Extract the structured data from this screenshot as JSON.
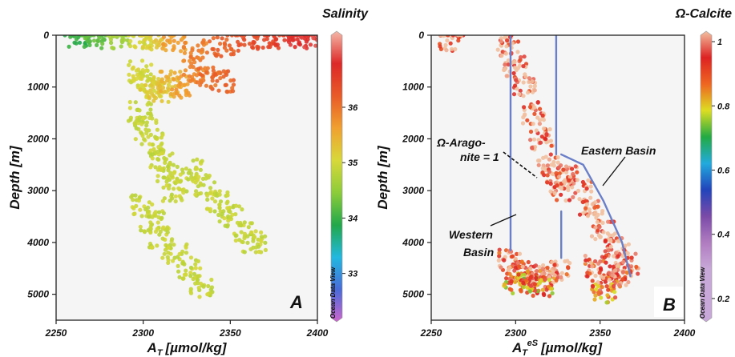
{
  "colors": {
    "salinity_stops": [
      "#cc66cc",
      "#4a6bd8",
      "#22b8e0",
      "#22a84a",
      "#8ccc3a",
      "#d8d83a",
      "#f0a030",
      "#e85a28",
      "#dd2828",
      "#f4b8a8"
    ],
    "calcite_stops": [
      "#c8a8d8",
      "#c8a8d8",
      "#c8a8d8",
      "#b07cc0",
      "#7a4aa8",
      "#2244bb",
      "#22aadd",
      "#22aa44",
      "#dddd22",
      "#ee6622",
      "#dd2222",
      "#f2c0a0"
    ],
    "omega_points": "#f8c29a",
    "basin_line": "#6a7fc8",
    "plot_bg": "#f4f5f4"
  },
  "chart_data": [
    {
      "type": "scatter",
      "panel_label": "A",
      "xlabel": "A",
      "xlabel_sub": "T",
      "xlabel_units": "[µmol/kg]",
      "ylabel": "Depth [m]",
      "xlim": [
        2250,
        2400
      ],
      "ylim": [
        5500,
        0
      ],
      "x_ticks": [
        "2250",
        "2300",
        "2350",
        "2400"
      ],
      "y_ticks": [
        "0",
        "1000",
        "2000",
        "3000",
        "4000",
        "5000"
      ],
      "colorbar": {
        "title": "Salinity",
        "range": [
          32.2,
          37.3
        ],
        "ticks": [
          "33",
          "34",
          "35",
          "36"
        ],
        "watermark": "Ocean Data View"
      },
      "series": [
        {
          "x": [
            2262,
            2272,
            2285,
            2298,
            2305,
            2318,
            2330,
            2345,
            2360,
            2375,
            2390,
            2396
          ],
          "y": [
            60,
            40,
            50,
            80,
            100,
            150,
            300,
            200,
            120,
            80,
            60,
            20
          ],
          "c": [
            34.0,
            34.2,
            34.6,
            35.0,
            35.2,
            35.6,
            35.9,
            36.1,
            36.3,
            36.5,
            36.7,
            36.8
          ]
        },
        {
          "x": [
            2298,
            2300,
            2305,
            2310,
            2315,
            2322,
            2330,
            2338,
            2345
          ],
          "y": [
            700,
            900,
            1000,
            1100,
            900,
            1000,
            700,
            800,
            900
          ],
          "c": [
            35.0,
            35.0,
            35.1,
            35.2,
            35.4,
            35.6,
            35.8,
            36.0,
            36.1
          ]
        },
        {
          "x": [
            2298,
            2302,
            2306,
            2310,
            2314,
            2318
          ],
          "y": [
            1500,
            1800,
            2100,
            2400,
            2700,
            3000
          ],
          "c": [
            34.9,
            34.9,
            34.9,
            34.9,
            34.9,
            34.9
          ]
        },
        {
          "x": [
            2300,
            2305,
            2310,
            2318,
            2326,
            2333
          ],
          "y": [
            3300,
            3600,
            3900,
            4200,
            4500,
            4850
          ],
          "c": [
            34.9,
            34.9,
            34.9,
            34.9,
            34.9,
            34.9
          ]
        },
        {
          "x": [
            2328,
            2335,
            2342,
            2350,
            2358,
            2364
          ],
          "y": [
            2600,
            2900,
            3200,
            3500,
            3800,
            4000
          ],
          "c": [
            34.9,
            34.9,
            34.9,
            34.9,
            34.9,
            34.9
          ]
        }
      ]
    },
    {
      "type": "scatter",
      "panel_label": "B",
      "xlabel": "A",
      "xlabel_sub": "T",
      "xlabel_sup": "eS",
      "xlabel_units": "[µmol/kg]",
      "ylabel": "Depth [m]",
      "xlim": [
        2250,
        2400
      ],
      "ylim": [
        5500,
        0
      ],
      "x_ticks": [
        "2250",
        "2300",
        "2350",
        "2400"
      ],
      "y_ticks": [
        "0",
        "1000",
        "2000",
        "3000",
        "4000",
        "5000"
      ],
      "colorbar": {
        "title": "Ω-Calcite",
        "range": [
          0.14,
          1.02
        ],
        "ticks": [
          "0.2",
          "0.4",
          "0.6",
          "0.8",
          "1"
        ],
        "watermark": "Ocean Data View"
      },
      "series": [
        {
          "x": [
            2262,
            2296,
            2300,
            2305,
            2310,
            2315,
            2320,
            2325
          ],
          "y": [
            100,
            200,
            600,
            1000,
            1500,
            2000,
            2500,
            3000
          ],
          "c": [
            1.0,
            1.0,
            1.0,
            1.0,
            1.0,
            1.0,
            1.0,
            1.0
          ]
        },
        {
          "x": [
            2330,
            2338,
            2345,
            2352,
            2360,
            2366
          ],
          "y": [
            2700,
            3000,
            3400,
            3800,
            4100,
            4400
          ],
          "c": [
            1.0,
            1.0,
            1.0,
            1.0,
            1.0,
            1.0
          ]
        },
        {
          "x": [
            2297,
            2303,
            2310,
            2318,
            2325,
            2348,
            2355,
            2362
          ],
          "y": [
            4350,
            4550,
            4650,
            4700,
            4550,
            4450,
            4650,
            4700
          ],
          "c": [
            0.96,
            0.95,
            0.97,
            0.94,
            0.98,
            0.95,
            0.93,
            0.96
          ]
        },
        {
          "x": [
            2300,
            2308,
            2315,
            2352
          ],
          "y": [
            4800,
            4750,
            4850,
            4950
          ],
          "c": [
            0.85,
            0.88,
            0.86,
            0.87
          ]
        }
      ],
      "annotations": [
        {
          "text": "Ω-Arago-",
          "text2": "nite = 1"
        },
        {
          "text": "Eastern Basin"
        },
        {
          "text": "Western",
          "text2": "Basin"
        }
      ],
      "basin_lines": [
        {
          "name": "western-left",
          "points": [
            [
              2297,
              0
            ],
            [
              2297,
              4150
            ]
          ]
        },
        {
          "name": "western-right",
          "points": [
            [
              2324,
              0
            ],
            [
              2324,
              2300
            ]
          ]
        },
        {
          "name": "western-right-deep",
          "points": [
            [
              2327,
              3400
            ],
            [
              2327,
              4300
            ]
          ]
        },
        {
          "name": "eastern",
          "points": [
            [
              2327,
              2300
            ],
            [
              2340,
              2500
            ],
            [
              2352,
              3200
            ],
            [
              2363,
              4000
            ],
            [
              2368,
              4650
            ]
          ]
        }
      ]
    }
  ]
}
